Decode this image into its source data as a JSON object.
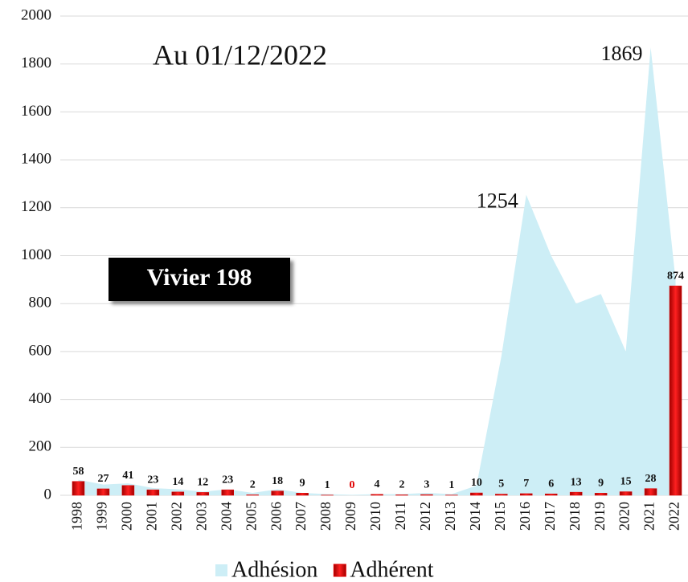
{
  "chart_data": {
    "type": "bar",
    "title": "Au 01/12/2022",
    "subtitle": "Vivier 198",
    "categories": [
      "1998",
      "1999",
      "2000",
      "2001",
      "2002",
      "2003",
      "2004",
      "2005",
      "2006",
      "2007",
      "2008",
      "2009",
      "2010",
      "2011",
      "2012",
      "2013",
      "2014",
      "2015",
      "2016",
      "2017",
      "2018",
      "2019",
      "2020",
      "2021",
      "2022"
    ],
    "series": [
      {
        "name": "Adhésion",
        "type": "area",
        "color": "#cdeef6",
        "values": [
          65,
          45,
          50,
          30,
          25,
          15,
          25,
          10,
          25,
          10,
          5,
          2,
          5,
          5,
          10,
          5,
          40,
          580,
          1254,
          1000,
          800,
          840,
          600,
          1869,
          900
        ],
        "value_labels": [
          null,
          null,
          null,
          null,
          null,
          null,
          null,
          null,
          null,
          null,
          null,
          null,
          null,
          null,
          null,
          null,
          null,
          null,
          "1254",
          null,
          null,
          null,
          null,
          "1869",
          null
        ]
      },
      {
        "name": "Adhérent",
        "type": "bar",
        "color": "#e00000",
        "values": [
          58,
          27,
          41,
          23,
          14,
          12,
          23,
          2,
          18,
          9,
          1,
          0,
          4,
          2,
          3,
          1,
          10,
          5,
          7,
          6,
          13,
          9,
          15,
          28,
          874
        ]
      }
    ],
    "ylim": [
      0,
      2000
    ],
    "yticks": [
      0,
      200,
      400,
      600,
      800,
      1000,
      1200,
      1400,
      1600,
      1800,
      2000
    ],
    "grid": true,
    "legend": "bottom"
  }
}
